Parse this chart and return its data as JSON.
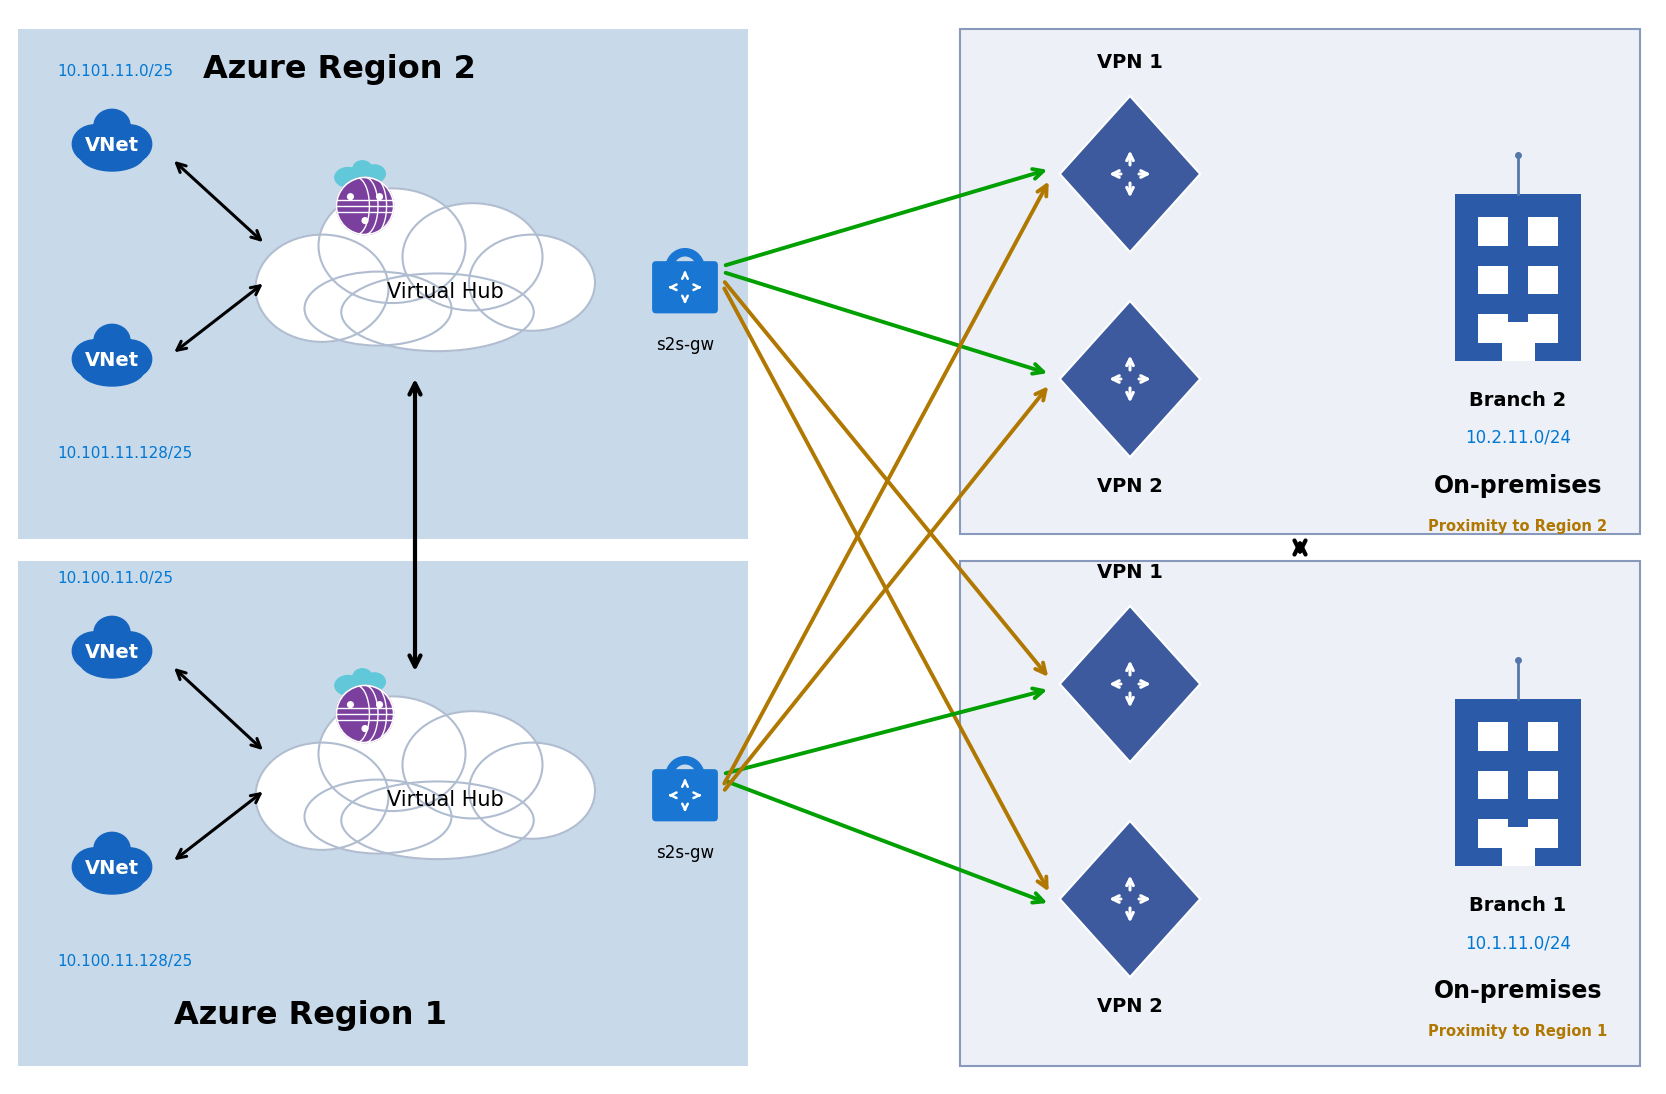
{
  "white_bg": "#FFFFFF",
  "azure_region_bg": "#C8D9EA",
  "onprem_bg": "#EDF0F7",
  "azure_blue": "#0078D4",
  "vnet_blue": "#1565C0",
  "vpn_diamond_color": "#3D5A9E",
  "branch_blue": "#2B5BA8",
  "lock_blue": "#1976D2",
  "globe_purple": "#7B3F9E",
  "globe_cloud_teal": "#60C8D8",
  "region2": {
    "title": "Azure Region 2",
    "ip_vnet1": "10.101.11.0/25",
    "ip_vnet2": "10.101.11.128/25",
    "hub_label": "Virtual Hub",
    "gw_label": "s2s-gw"
  },
  "region1": {
    "title": "Azure Region 1",
    "ip_vnet1": "10.100.11.0/25",
    "ip_vnet2": "10.100.11.128/25",
    "hub_label": "Virtual Hub",
    "gw_label": "s2s-gw"
  },
  "branch2": {
    "title": "Branch 2",
    "ip": "10.2.11.0/24",
    "onprem": "On-premises",
    "proximity": "Proximity to Region 2",
    "vpn1_label": "VPN 1",
    "vpn2_label": "VPN 2"
  },
  "branch1": {
    "title": "Branch 1",
    "ip": "10.1.11.0/24",
    "onprem": "On-premises",
    "proximity": "Proximity to Region 1",
    "vpn1_label": "VPN 1",
    "vpn2_label": "VPN 2"
  },
  "arrow_green": "#00A000",
  "arrow_gold": "#B07800",
  "arrow_black": "#000000"
}
